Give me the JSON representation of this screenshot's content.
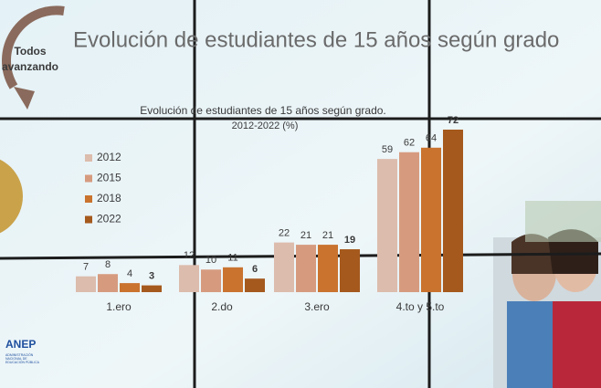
{
  "slide": {
    "title": "Evolución de estudiantes de 15 años según grado",
    "badge": [
      "Todos",
      "avanzando"
    ],
    "logo": "ANEP",
    "logo_sub": [
      "ADMINISTRACIÓN",
      "NACIONAL DE",
      "EDUCACIÓN PÚBLICA"
    ]
  },
  "chart_data": {
    "type": "bar",
    "title": "Evolución de estudiantes de 15 años según grado.",
    "subtitle": "2012-2022 (%)",
    "categories": [
      "1.ero",
      "2.do",
      "3.ero",
      "4.to y 5.to"
    ],
    "series": [
      {
        "name": "2012",
        "color": "#dcbcad",
        "values": [
          7,
          12,
          22,
          59
        ]
      },
      {
        "name": "2015",
        "color": "#d69b7f",
        "values": [
          8,
          10,
          21,
          62
        ]
      },
      {
        "name": "2018",
        "color": "#c9732f",
        "values": [
          4,
          11,
          21,
          64
        ]
      },
      {
        "name": "2022",
        "color": "#a5591d",
        "values": [
          3,
          6,
          19,
          72
        ]
      }
    ],
    "legend": "left"
  }
}
